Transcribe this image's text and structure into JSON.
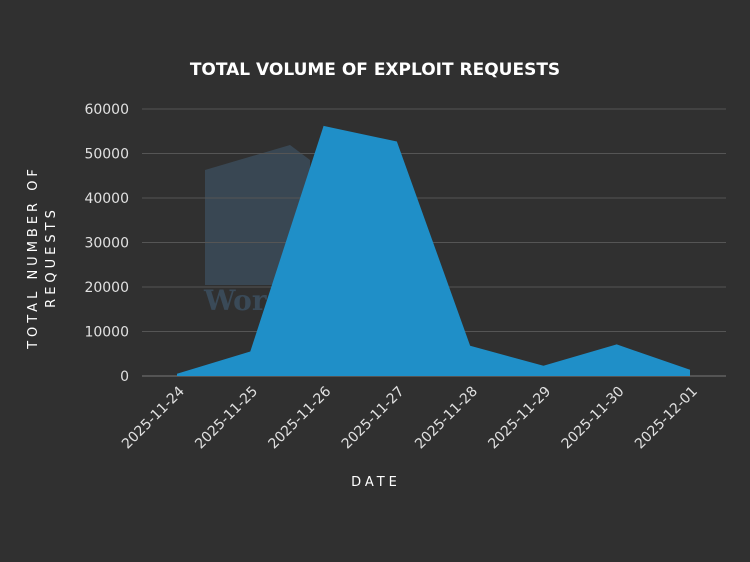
{
  "chart_data": {
    "type": "area",
    "title": "TOTAL VOLUME OF EXPLOIT REQUESTS",
    "xlabel": "DATE",
    "ylabel_lines": [
      "TOTAL NUMBER OF",
      "REQUESTS"
    ],
    "categories": [
      "2025-11-24",
      "2025-11-25",
      "2025-11-26",
      "2025-11-27",
      "2025-11-28",
      "2025-11-29",
      "2025-11-30",
      "2025-12-01"
    ],
    "values": [
      500,
      5500,
      56200,
      52700,
      6800,
      2300,
      7100,
      1400
    ],
    "ylim": [
      0,
      60000
    ],
    "yticks": [
      0,
      10000,
      20000,
      30000,
      40000,
      50000,
      60000
    ],
    "grid": true,
    "legend": "none",
    "colors": {
      "area": "#1f8fc8",
      "background": "#303030",
      "grid": "#555555"
    }
  },
  "watermark": {
    "text": "Wor",
    "icon": "shield-logo-icon"
  }
}
